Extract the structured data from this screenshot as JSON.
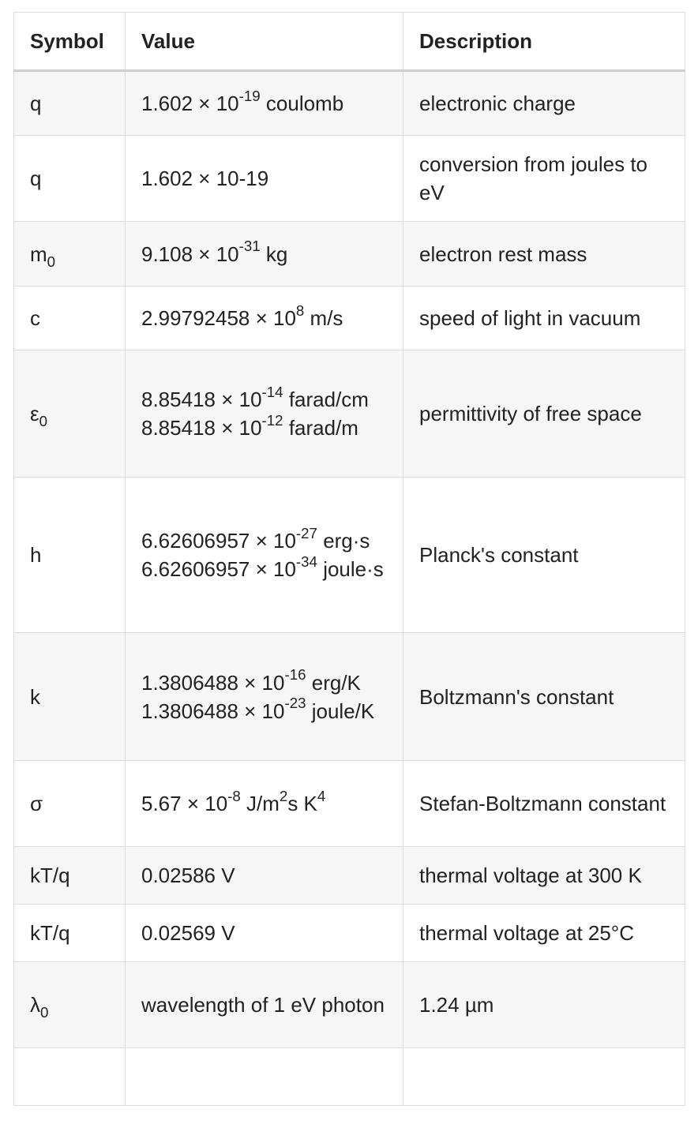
{
  "headers": [
    "Symbol",
    "Value",
    "Description"
  ],
  "rows": [
    {
      "symbol": "q",
      "value_html": [
        "1.602 × 10<sup>-19</sup> coulomb"
      ],
      "description": "electronic charge"
    },
    {
      "symbol": "q",
      "value_html": [
        "1.602 × 10-19"
      ],
      "description": "conversion from joules to eV"
    },
    {
      "symbol_html": "m<sub>0</sub>",
      "value_html": [
        "9.108 × 10<sup>-31</sup> kg"
      ],
      "description": "electron rest mass"
    },
    {
      "symbol": "c",
      "value_html": [
        "2.99792458 × 10<sup>8</sup> m/s"
      ],
      "description": "speed of light in vacuum"
    },
    {
      "symbol_html": "ε<sub>0</sub>",
      "value_html": [
        "8.85418 × 10<sup>-14</sup> farad/cm",
        "8.85418 × 10<sup>-12</sup> farad/m"
      ],
      "description": "permittivity of free space"
    },
    {
      "symbol": "h",
      "value_html": [
        "6.62606957 × 10<sup>-27</sup> erg·s",
        "6.62606957 × 10<sup>-34</sup> joule·s"
      ],
      "description": "Planck's constant"
    },
    {
      "symbol": "k",
      "value_html": [
        "1.3806488 × 10<sup>-16</sup> erg/K",
        "1.3806488 × 10<sup>-23</sup> joule/K"
      ],
      "description": "Boltzmann's constant"
    },
    {
      "symbol": "σ",
      "value_html": [
        "5.67 × 10<sup>-8</sup> J/m<sup>2</sup>s K<sup>4</sup>"
      ],
      "description": "Stefan-Boltzmann constant"
    },
    {
      "symbol": "kT/q",
      "value_html": [
        "0.02586 V"
      ],
      "description": "thermal voltage at 300 K"
    },
    {
      "symbol": "kT/q",
      "value_html": [
        "0.02569 V"
      ],
      "description": "thermal voltage at 25°C"
    },
    {
      "symbol_html": "λ<sub>0</sub>",
      "value_html": [
        "wavelength of 1 eV photon"
      ],
      "description": "1.24 µm"
    },
    {
      "symbol": "",
      "value_html": [
        ""
      ],
      "description": ""
    }
  ]
}
